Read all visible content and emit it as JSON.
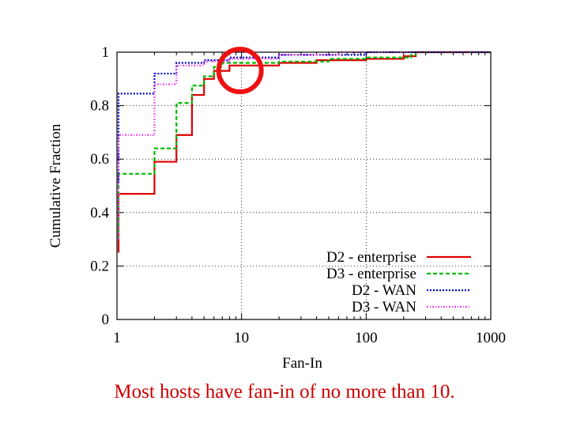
{
  "chart_data": {
    "type": "line",
    "title": "",
    "xlabel": "Fan-In",
    "ylabel": "Cumulative Fraction",
    "xscale": "log",
    "xlim": [
      1,
      1000
    ],
    "ylim": [
      0,
      1
    ],
    "x_ticks": [
      "1",
      "10",
      "100",
      "1000"
    ],
    "x_tick_values": [
      1,
      10,
      100,
      1000
    ],
    "y_ticks": [
      "0",
      "0.2",
      "0.4",
      "0.6",
      "0.8",
      "1"
    ],
    "y_tick_values": [
      0,
      0.2,
      0.4,
      0.6,
      0.8,
      1
    ],
    "grid": true,
    "legend_position": "bottom-right",
    "series": [
      {
        "name": "D2 - enterprise",
        "color": "#dd0000",
        "dash": "solid",
        "points": [
          [
            0.95,
            0.25
          ],
          [
            1,
            0.47
          ],
          [
            2,
            0.59
          ],
          [
            3,
            0.69
          ],
          [
            4,
            0.84
          ],
          [
            5,
            0.9
          ],
          [
            6,
            0.93
          ],
          [
            8,
            0.95
          ],
          [
            20,
            0.96
          ],
          [
            40,
            0.97
          ],
          [
            100,
            0.975
          ],
          [
            200,
            0.985
          ],
          [
            250,
            1.0
          ],
          [
            1000,
            1.0
          ]
        ]
      },
      {
        "name": "D3 - enterprise",
        "color": "#00bb00",
        "dash": "dashed",
        "points": [
          [
            0.95,
            0.3
          ],
          [
            1,
            0.545
          ],
          [
            2,
            0.64
          ],
          [
            3,
            0.81
          ],
          [
            4,
            0.875
          ],
          [
            5,
            0.91
          ],
          [
            6,
            0.945
          ],
          [
            7,
            0.96
          ],
          [
            20,
            0.965
          ],
          [
            50,
            0.975
          ],
          [
            100,
            0.98
          ],
          [
            230,
            0.99
          ],
          [
            250,
            1.0
          ],
          [
            1000,
            1.0
          ]
        ]
      },
      {
        "name": "D2 - WAN",
        "color": "#0000cc",
        "dash": "dotted",
        "points": [
          [
            0.95,
            0.51
          ],
          [
            1,
            0.845
          ],
          [
            2,
            0.92
          ],
          [
            3,
            0.96
          ],
          [
            5,
            0.97
          ],
          [
            8,
            0.98
          ],
          [
            20,
            0.99
          ],
          [
            100,
            1.0
          ],
          [
            1000,
            1.0
          ]
        ]
      },
      {
        "name": "D3 - WAN",
        "color": "#ee44ee",
        "dash": "dashdot",
        "points": [
          [
            0.95,
            0.3
          ],
          [
            1,
            0.69
          ],
          [
            2,
            0.88
          ],
          [
            3,
            0.95
          ],
          [
            5,
            0.965
          ],
          [
            8,
            0.975
          ],
          [
            20,
            0.99
          ],
          [
            60,
            1.0
          ],
          [
            1000,
            1.0
          ]
        ]
      }
    ],
    "annotations": [
      {
        "type": "circle",
        "color": "#ee1111",
        "x": 10,
        "y": 0.97
      }
    ]
  },
  "caption": "Most hosts have fan-in of no more than 10."
}
